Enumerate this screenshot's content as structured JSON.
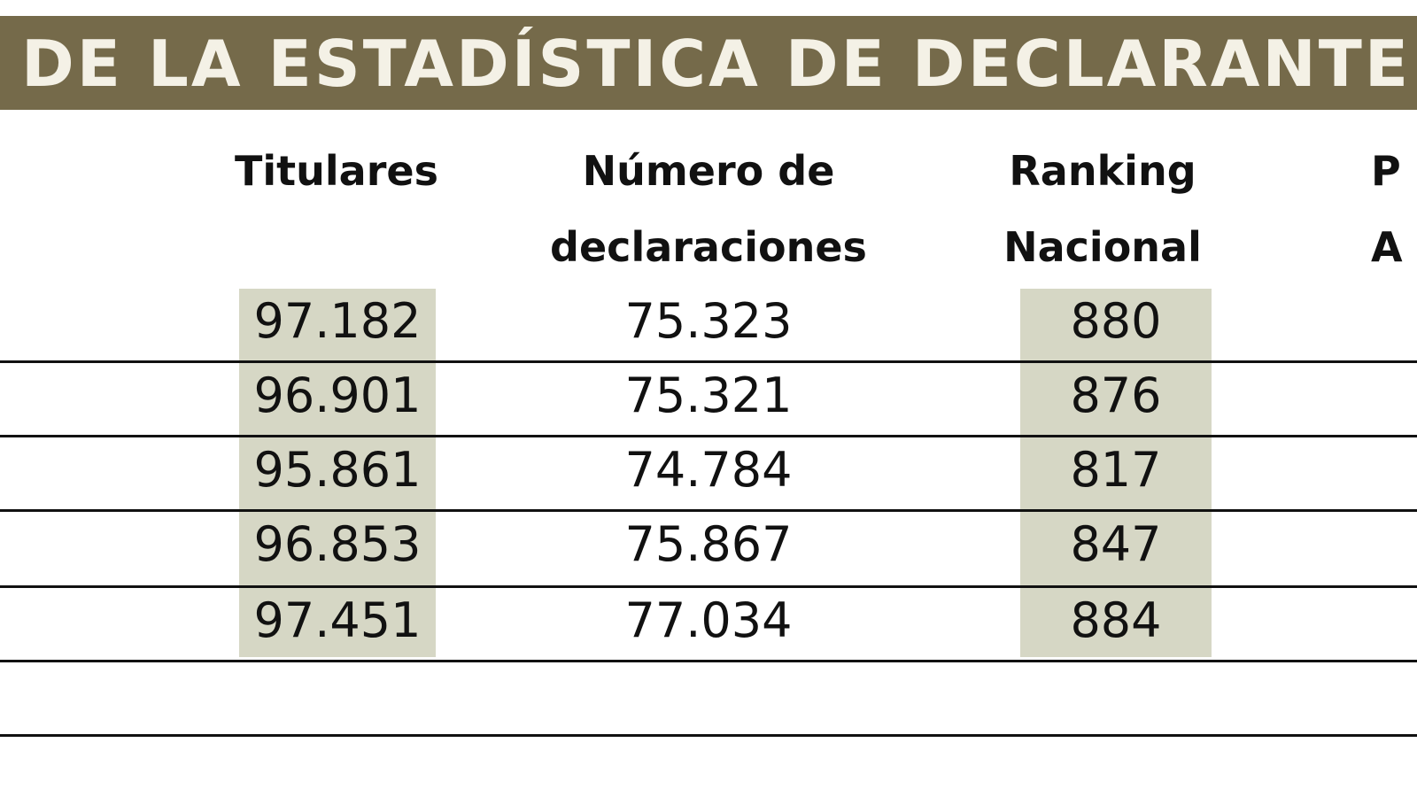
{
  "title": "DE LA ESTADÍSTICA DE DECLARANTE",
  "headers": {
    "titulares": "Titulares",
    "numero_line1": "Número de",
    "numero_line2": "declaraciones",
    "ranking_line1": "Ranking",
    "ranking_line2": "Nacional",
    "partial_line1": "P",
    "partial_line2": "A"
  },
  "rows": [
    {
      "titulares": "97.182",
      "declaraciones": "75.323",
      "ranking": "880"
    },
    {
      "titulares": "96.901",
      "declaraciones": "75.321",
      "ranking": "876"
    },
    {
      "titulares": "95.861",
      "declaraciones": "74.784",
      "ranking": "817"
    },
    {
      "titulares": "96.853",
      "declaraciones": "75.867",
      "ranking": "847"
    },
    {
      "titulares": "97.451",
      "declaraciones": "77.034",
      "ranking": "884"
    }
  ],
  "colors": {
    "title_bar": "#756a4a",
    "title_text": "#f4f1e6",
    "highlight": "#d6d7c5"
  }
}
